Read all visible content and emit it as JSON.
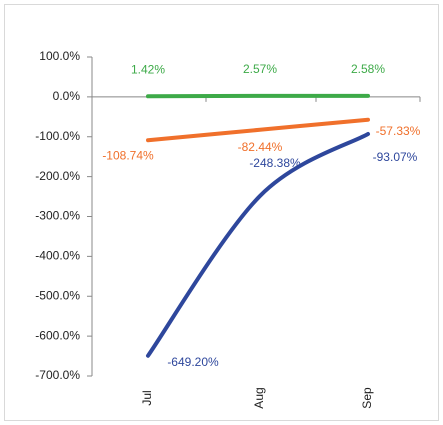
{
  "chart_data": {
    "type": "line",
    "categories": [
      "Jul",
      "Aug",
      "Sep"
    ],
    "series": [
      {
        "color": "#3daa48",
        "values": [
          1.42,
          2.57,
          2.58
        ],
        "value_labels": [
          "1.42%",
          "2.57%",
          "2.58%"
        ]
      },
      {
        "color": "#f0702b",
        "values": [
          -108.74,
          -82.44,
          -57.33
        ],
        "value_labels": [
          "-108.74%",
          "-82.44%",
          "-57.33%"
        ]
      },
      {
        "color": "#2e479c",
        "values": [
          -649.2,
          -248.38,
          -93.07
        ],
        "value_labels": [
          "-649.20%",
          "-248.38%",
          "-93.07%"
        ]
      }
    ],
    "ylim": [
      -700,
      100
    ],
    "yticks": [
      {
        "value": 100,
        "label": "100.0%"
      },
      {
        "value": 0,
        "label": "0.0%"
      },
      {
        "value": -100,
        "label": "-100.0%"
      },
      {
        "value": -200,
        "label": "-200.0%"
      },
      {
        "value": -300,
        "label": "-300.0%"
      },
      {
        "value": -400,
        "label": "-400.0%"
      },
      {
        "value": -500,
        "label": "-500.0%"
      },
      {
        "value": -600,
        "label": "-600.0%"
      },
      {
        "value": -700,
        "label": "-700.0%"
      }
    ],
    "grid": false
  }
}
